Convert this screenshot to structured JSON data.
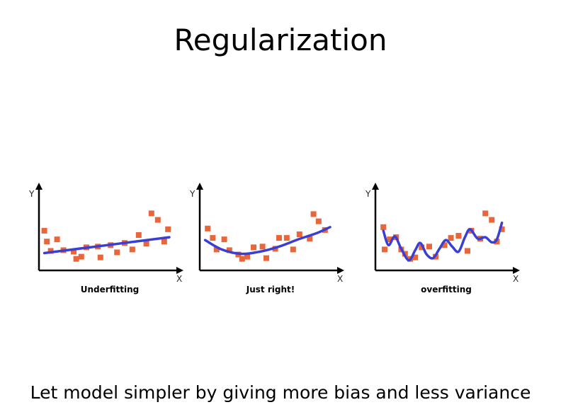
{
  "slide": {
    "title": "Regularization",
    "footer": "Let model simpler by giving more bias and less variance"
  },
  "colors": {
    "point": "#e8663a",
    "curve": "#3a3fd4",
    "axis": "#000000"
  },
  "chart_data": [
    {
      "type": "scatter",
      "title": "Underfitting",
      "xlabel": "X",
      "ylabel": "Y",
      "points": [
        [
          0.02,
          0.55
        ],
        [
          0.04,
          0.4
        ],
        [
          0.07,
          0.27
        ],
        [
          0.12,
          0.43
        ],
        [
          0.17,
          0.28
        ],
        [
          0.25,
          0.26
        ],
        [
          0.27,
          0.16
        ],
        [
          0.31,
          0.19
        ],
        [
          0.35,
          0.32
        ],
        [
          0.44,
          0.33
        ],
        [
          0.46,
          0.18
        ],
        [
          0.54,
          0.35
        ],
        [
          0.59,
          0.25
        ],
        [
          0.65,
          0.38
        ],
        [
          0.71,
          0.29
        ],
        [
          0.76,
          0.49
        ],
        [
          0.82,
          0.37
        ],
        [
          0.86,
          0.79
        ],
        [
          0.91,
          0.7
        ],
        [
          0.96,
          0.4
        ],
        [
          0.99,
          0.57
        ]
      ],
      "fit": [
        [
          0.02,
          0.24
        ],
        [
          1.0,
          0.46
        ]
      ]
    },
    {
      "type": "scatter",
      "title": "Just right!",
      "xlabel": "X",
      "ylabel": "Y",
      "points": [
        [
          0.04,
          0.58
        ],
        [
          0.08,
          0.45
        ],
        [
          0.11,
          0.29
        ],
        [
          0.17,
          0.43
        ],
        [
          0.21,
          0.28
        ],
        [
          0.28,
          0.22
        ],
        [
          0.31,
          0.16
        ],
        [
          0.35,
          0.19
        ],
        [
          0.4,
          0.32
        ],
        [
          0.47,
          0.33
        ],
        [
          0.5,
          0.17
        ],
        [
          0.57,
          0.3
        ],
        [
          0.6,
          0.45
        ],
        [
          0.66,
          0.45
        ],
        [
          0.71,
          0.29
        ],
        [
          0.76,
          0.5
        ],
        [
          0.84,
          0.44
        ],
        [
          0.87,
          0.78
        ],
        [
          0.91,
          0.68
        ],
        [
          0.96,
          0.56
        ]
      ],
      "fit": [
        [
          0.02,
          0.42
        ],
        [
          0.15,
          0.29
        ],
        [
          0.3,
          0.23
        ],
        [
          0.45,
          0.26
        ],
        [
          0.6,
          0.33
        ],
        [
          0.75,
          0.43
        ],
        [
          0.9,
          0.52
        ],
        [
          1.0,
          0.6
        ]
      ]
    },
    {
      "type": "scatter",
      "title": "overfitting",
      "xlabel": "X",
      "ylabel": "Y",
      "points": [
        [
          0.04,
          0.6
        ],
        [
          0.05,
          0.29
        ],
        [
          0.09,
          0.43
        ],
        [
          0.14,
          0.46
        ],
        [
          0.18,
          0.29
        ],
        [
          0.21,
          0.23
        ],
        [
          0.25,
          0.16
        ],
        [
          0.29,
          0.18
        ],
        [
          0.34,
          0.32
        ],
        [
          0.4,
          0.33
        ],
        [
          0.45,
          0.19
        ],
        [
          0.52,
          0.35
        ],
        [
          0.57,
          0.45
        ],
        [
          0.63,
          0.48
        ],
        [
          0.7,
          0.27
        ],
        [
          0.73,
          0.55
        ],
        [
          0.8,
          0.44
        ],
        [
          0.84,
          0.79
        ],
        [
          0.89,
          0.7
        ],
        [
          0.93,
          0.4
        ],
        [
          0.97,
          0.57
        ]
      ],
      "fit": [
        [
          0.04,
          0.55
        ],
        [
          0.08,
          0.35
        ],
        [
          0.13,
          0.47
        ],
        [
          0.18,
          0.3
        ],
        [
          0.24,
          0.14
        ],
        [
          0.29,
          0.28
        ],
        [
          0.33,
          0.38
        ],
        [
          0.38,
          0.22
        ],
        [
          0.43,
          0.17
        ],
        [
          0.48,
          0.3
        ],
        [
          0.53,
          0.42
        ],
        [
          0.58,
          0.33
        ],
        [
          0.63,
          0.26
        ],
        [
          0.68,
          0.46
        ],
        [
          0.72,
          0.57
        ],
        [
          0.78,
          0.44
        ],
        [
          0.84,
          0.46
        ],
        [
          0.89,
          0.39
        ],
        [
          0.93,
          0.43
        ],
        [
          0.97,
          0.66
        ]
      ]
    }
  ]
}
